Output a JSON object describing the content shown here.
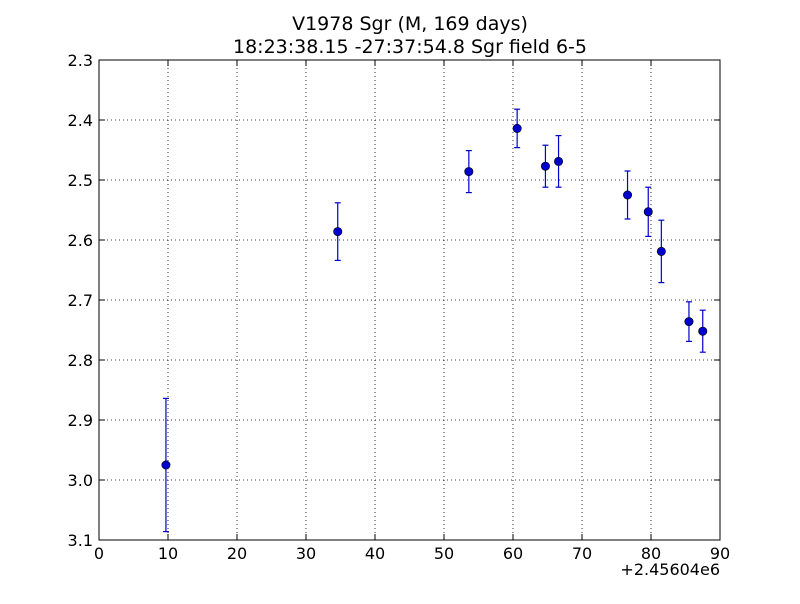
{
  "chart_data": {
    "type": "scatter",
    "title": "V1978 Sgr  (M, 169 days)",
    "subtitle": "18:23:38.15 -27:37:54.8 Sgr field 6-5",
    "xlabel": "",
    "ylabel": "",
    "x_offset_label": "+2.45604e6",
    "xlim": [
      0,
      90
    ],
    "ylim": [
      2.3,
      3.1
    ],
    "y_inverted": true,
    "x_ticks": [
      0,
      10,
      20,
      30,
      40,
      50,
      60,
      70,
      80,
      90
    ],
    "y_ticks": [
      2.3,
      2.4,
      2.5,
      2.6,
      2.7,
      2.8,
      2.9,
      3.0,
      3.1
    ],
    "x_tick_labels": [
      "0",
      "10",
      "20",
      "30",
      "40",
      "50",
      "60",
      "70",
      "80",
      "90"
    ],
    "y_tick_labels": [
      "2.3",
      "2.4",
      "2.5",
      "2.6",
      "2.7",
      "2.8",
      "2.9",
      "3.0",
      "3.1"
    ],
    "grid": true,
    "color": "#0000cc",
    "series": [
      {
        "x": [
          9.7,
          34.6,
          53.6,
          60.6,
          64.7,
          66.6,
          76.6,
          79.6,
          81.5,
          85.5,
          87.5
        ],
        "y": [
          2.975,
          2.586,
          2.486,
          2.414,
          2.477,
          2.469,
          2.525,
          2.553,
          2.619,
          2.736,
          2.752
        ],
        "yerr": [
          0.111,
          0.048,
          0.035,
          0.032,
          0.035,
          0.043,
          0.04,
          0.041,
          0.052,
          0.033,
          0.035
        ]
      }
    ]
  }
}
